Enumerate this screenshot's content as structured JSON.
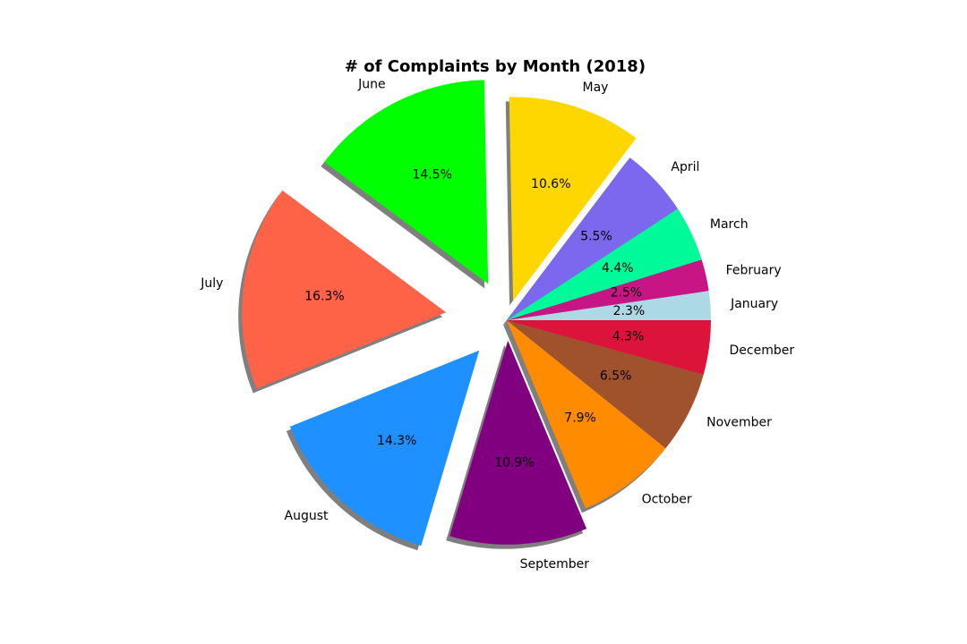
{
  "chart_data": {
    "type": "pie",
    "title": "# of Complaints by Month (2018)",
    "labels": [
      "January",
      "February",
      "March",
      "April",
      "May",
      "June",
      "July",
      "August",
      "September",
      "October",
      "November",
      "December"
    ],
    "values": [
      2.3,
      2.5,
      4.4,
      5.5,
      10.6,
      14.5,
      16.3,
      14.3,
      10.9,
      7.9,
      6.5,
      4.3
    ],
    "value_labels": [
      "2.3%",
      "2.5%",
      "4.4%",
      "5.5%",
      "10.6%",
      "14.5%",
      "16.3%",
      "14.3%",
      "10.9%",
      "7.9%",
      "6.5%",
      "4.3%"
    ],
    "colors": [
      "#ADD8E6",
      "#C71585",
      "#00FA9A",
      "#7B68EE",
      "#FFD700",
      "#00FF00",
      "#FF6347",
      "#1E90FF",
      "#800080",
      "#FF8C00",
      "#A0522D",
      "#DC143C"
    ],
    "explode": [
      0,
      0,
      0,
      0,
      0.1,
      0.2,
      0.3,
      0.2,
      0.1,
      0,
      0,
      0
    ],
    "start_angle_deg": 0,
    "direction": "counterclockwise",
    "shadow": true,
    "legend": "none"
  }
}
